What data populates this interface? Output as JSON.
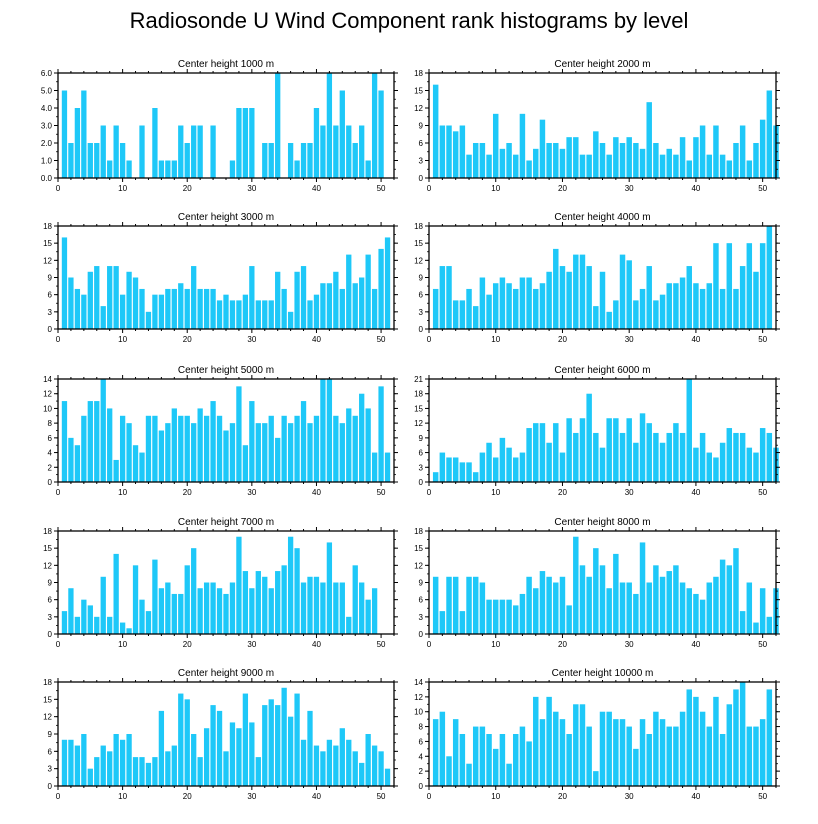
{
  "title": "Radiosonde U Wind Component rank histograms by level",
  "bar_color": "#1ec8f8",
  "chart_data": [
    {
      "type": "bar",
      "title": "Center height 1000 m",
      "ylim": [
        0,
        6
      ],
      "yticks": [
        "0.0",
        "1.0",
        "2.0",
        "3.0",
        "4.0",
        "5.0",
        "6.0"
      ],
      "ytick_values": [
        0,
        1,
        2,
        3,
        4,
        5,
        6
      ],
      "xlim": [
        0,
        52
      ],
      "xticks": [
        0,
        10,
        20,
        30,
        40,
        50
      ],
      "values": [
        5,
        2,
        4,
        5,
        2,
        2,
        3,
        1,
        3,
        2,
        1,
        0,
        3,
        0,
        4,
        1,
        1,
        1,
        3,
        2,
        3,
        3,
        0,
        3,
        0,
        0,
        1,
        4,
        4,
        4,
        0,
        2,
        2,
        6,
        0,
        2,
        1,
        2,
        2,
        4,
        3,
        6,
        3,
        5,
        3,
        2,
        3,
        1,
        6,
        5,
        0,
        0
      ]
    },
    {
      "type": "bar",
      "title": "Center height 2000 m",
      "ylim": [
        0,
        18
      ],
      "yticks": [
        "0",
        "3",
        "6",
        "9",
        "12",
        "15",
        "18"
      ],
      "ytick_values": [
        0,
        3,
        6,
        9,
        12,
        15,
        18
      ],
      "xlim": [
        0,
        52
      ],
      "xticks": [
        0,
        10,
        20,
        30,
        40,
        50
      ],
      "values": [
        16,
        9,
        9,
        8,
        9,
        4,
        6,
        6,
        4,
        11,
        5,
        6,
        4,
        11,
        3,
        5,
        10,
        6,
        6,
        5,
        7,
        7,
        4,
        4,
        8,
        6,
        4,
        7,
        6,
        7,
        6,
        5,
        13,
        6,
        4,
        5,
        4,
        7,
        3,
        7,
        9,
        4,
        9,
        4,
        3,
        6,
        9,
        3,
        6,
        10,
        15,
        9
      ]
    },
    {
      "type": "bar",
      "title": "Center height 3000 m",
      "ylim": [
        0,
        18
      ],
      "yticks": [
        "0",
        "3",
        "6",
        "9",
        "12",
        "15",
        "18"
      ],
      "ytick_values": [
        0,
        3,
        6,
        9,
        12,
        15,
        18
      ],
      "xlim": [
        0,
        52
      ],
      "xticks": [
        0,
        10,
        20,
        30,
        40,
        50
      ],
      "values": [
        16,
        9,
        7,
        6,
        10,
        11,
        4,
        11,
        11,
        6,
        10,
        9,
        7,
        3,
        6,
        6,
        7,
        7,
        8,
        7,
        11,
        7,
        7,
        7,
        5,
        6,
        5,
        5,
        6,
        11,
        5,
        5,
        5,
        10,
        7,
        3,
        10,
        11,
        5,
        6,
        8,
        8,
        10,
        7,
        13,
        8,
        9,
        13,
        7,
        14,
        16,
        0
      ]
    },
    {
      "type": "bar",
      "title": "Center height 4000 m",
      "ylim": [
        0,
        18
      ],
      "yticks": [
        "0",
        "3",
        "6",
        "9",
        "12",
        "15",
        "18"
      ],
      "ytick_values": [
        0,
        3,
        6,
        9,
        12,
        15,
        18
      ],
      "xlim": [
        0,
        52
      ],
      "xticks": [
        0,
        10,
        20,
        30,
        40,
        50
      ],
      "values": [
        7,
        11,
        11,
        5,
        5,
        7,
        4,
        9,
        6,
        8,
        9,
        8,
        7,
        9,
        9,
        7,
        8,
        10,
        14,
        11,
        10,
        13,
        13,
        11,
        4,
        10,
        3,
        5,
        13,
        12,
        5,
        7,
        11,
        5,
        6,
        8,
        8,
        9,
        11,
        8,
        7,
        8,
        15,
        7,
        15,
        7,
        11,
        15,
        10,
        15,
        18,
        0
      ]
    },
    {
      "type": "bar",
      "title": "Center height 5000 m",
      "ylim": [
        0,
        14
      ],
      "yticks": [
        "0",
        "2",
        "4",
        "6",
        "8",
        "10",
        "12",
        "14"
      ],
      "ytick_values": [
        0,
        2,
        4,
        6,
        8,
        10,
        12,
        14
      ],
      "xlim": [
        0,
        52
      ],
      "xticks": [
        0,
        10,
        20,
        30,
        40,
        50
      ],
      "values": [
        11,
        6,
        5,
        9,
        11,
        11,
        14,
        10,
        3,
        9,
        8,
        5,
        4,
        9,
        9,
        7,
        8,
        10,
        9,
        9,
        8,
        10,
        9,
        11,
        9,
        7,
        8,
        13,
        5,
        11,
        8,
        8,
        9,
        6,
        9,
        8,
        9,
        11,
        8,
        9,
        14,
        14,
        9,
        8,
        10,
        9,
        12,
        10,
        4,
        13,
        4,
        0
      ]
    },
    {
      "type": "bar",
      "title": "Center height 6000 m",
      "ylim": [
        0,
        21
      ],
      "yticks": [
        "0",
        "3",
        "6",
        "9",
        "12",
        "15",
        "18",
        "21"
      ],
      "ytick_values": [
        0,
        3,
        6,
        9,
        12,
        15,
        18,
        21
      ],
      "xlim": [
        0,
        52
      ],
      "xticks": [
        0,
        10,
        20,
        30,
        40,
        50
      ],
      "values": [
        2,
        6,
        5,
        5,
        4,
        4,
        2,
        6,
        8,
        5,
        9,
        7,
        5,
        6,
        11,
        12,
        12,
        8,
        12,
        6,
        13,
        10,
        13,
        18,
        10,
        7,
        13,
        13,
        10,
        13,
        8,
        14,
        12,
        10,
        8,
        10,
        12,
        10,
        21,
        7,
        10,
        6,
        5,
        8,
        11,
        10,
        10,
        7,
        6,
        11,
        10,
        7
      ]
    },
    {
      "type": "bar",
      "title": "Center height 7000 m",
      "ylim": [
        0,
        18
      ],
      "yticks": [
        "0",
        "3",
        "6",
        "9",
        "12",
        "15",
        "18"
      ],
      "ytick_values": [
        0,
        3,
        6,
        9,
        12,
        15,
        18
      ],
      "xlim": [
        0,
        52
      ],
      "xticks": [
        0,
        10,
        20,
        30,
        40,
        50
      ],
      "values": [
        4,
        8,
        3,
        6,
        5,
        3,
        10,
        3,
        14,
        2,
        1,
        12,
        6,
        4,
        13,
        8,
        9,
        7,
        7,
        12,
        15,
        8,
        9,
        9,
        8,
        7,
        9,
        17,
        11,
        8,
        11,
        10,
        8,
        11,
        12,
        17,
        15,
        9,
        10,
        10,
        9,
        16,
        9,
        9,
        3,
        12,
        9,
        6,
        8,
        0,
        0,
        0
      ]
    },
    {
      "type": "bar",
      "title": "Center height 8000 m",
      "ylim": [
        0,
        18
      ],
      "yticks": [
        "0",
        "3",
        "6",
        "9",
        "12",
        "15",
        "18"
      ],
      "ytick_values": [
        0,
        3,
        6,
        9,
        12,
        15,
        18
      ],
      "xlim": [
        0,
        52
      ],
      "xticks": [
        0,
        10,
        20,
        30,
        40,
        50
      ],
      "values": [
        10,
        4,
        10,
        10,
        4,
        10,
        10,
        9,
        6,
        6,
        6,
        6,
        5,
        7,
        10,
        8,
        11,
        10,
        9,
        10,
        5,
        17,
        12,
        10,
        15,
        12,
        8,
        14,
        9,
        9,
        7,
        16,
        9,
        12,
        10,
        11,
        12,
        9,
        8,
        7,
        6,
        9,
        10,
        13,
        12,
        15,
        4,
        9,
        2,
        8,
        3,
        8
      ]
    },
    {
      "type": "bar",
      "title": "Center height 9000 m",
      "ylim": [
        0,
        18
      ],
      "yticks": [
        "0",
        "3",
        "6",
        "9",
        "12",
        "15",
        "18"
      ],
      "ytick_values": [
        0,
        3,
        6,
        9,
        12,
        15,
        18
      ],
      "xlim": [
        0,
        52
      ],
      "xticks": [
        0,
        10,
        20,
        30,
        40,
        50
      ],
      "values": [
        8,
        8,
        7,
        9,
        3,
        5,
        7,
        6,
        9,
        8,
        9,
        5,
        5,
        4,
        5,
        13,
        6,
        7,
        16,
        15,
        9,
        5,
        10,
        14,
        13,
        6,
        11,
        10,
        16,
        11,
        5,
        14,
        15,
        14,
        17,
        12,
        16,
        8,
        13,
        7,
        6,
        8,
        7,
        10,
        8,
        6,
        4,
        9,
        7,
        6,
        3,
        0
      ]
    },
    {
      "type": "bar",
      "title": "Center height 10000 m",
      "ylim": [
        0,
        14
      ],
      "yticks": [
        "0",
        "2",
        "4",
        "6",
        "8",
        "10",
        "12",
        "14"
      ],
      "ytick_values": [
        0,
        2,
        4,
        6,
        8,
        10,
        12,
        14
      ],
      "xlim": [
        0,
        52
      ],
      "xticks": [
        0,
        10,
        20,
        30,
        40,
        50
      ],
      "values": [
        9,
        10,
        4,
        9,
        7,
        3,
        8,
        8,
        7,
        5,
        7,
        3,
        7,
        8,
        6,
        12,
        9,
        12,
        10,
        9,
        7,
        11,
        11,
        8,
        2,
        10,
        10,
        9,
        9,
        8,
        5,
        9,
        7,
        10,
        9,
        8,
        8,
        10,
        13,
        12,
        10,
        8,
        12,
        7,
        11,
        13,
        14,
        8,
        8,
        9,
        13,
        0
      ]
    }
  ]
}
